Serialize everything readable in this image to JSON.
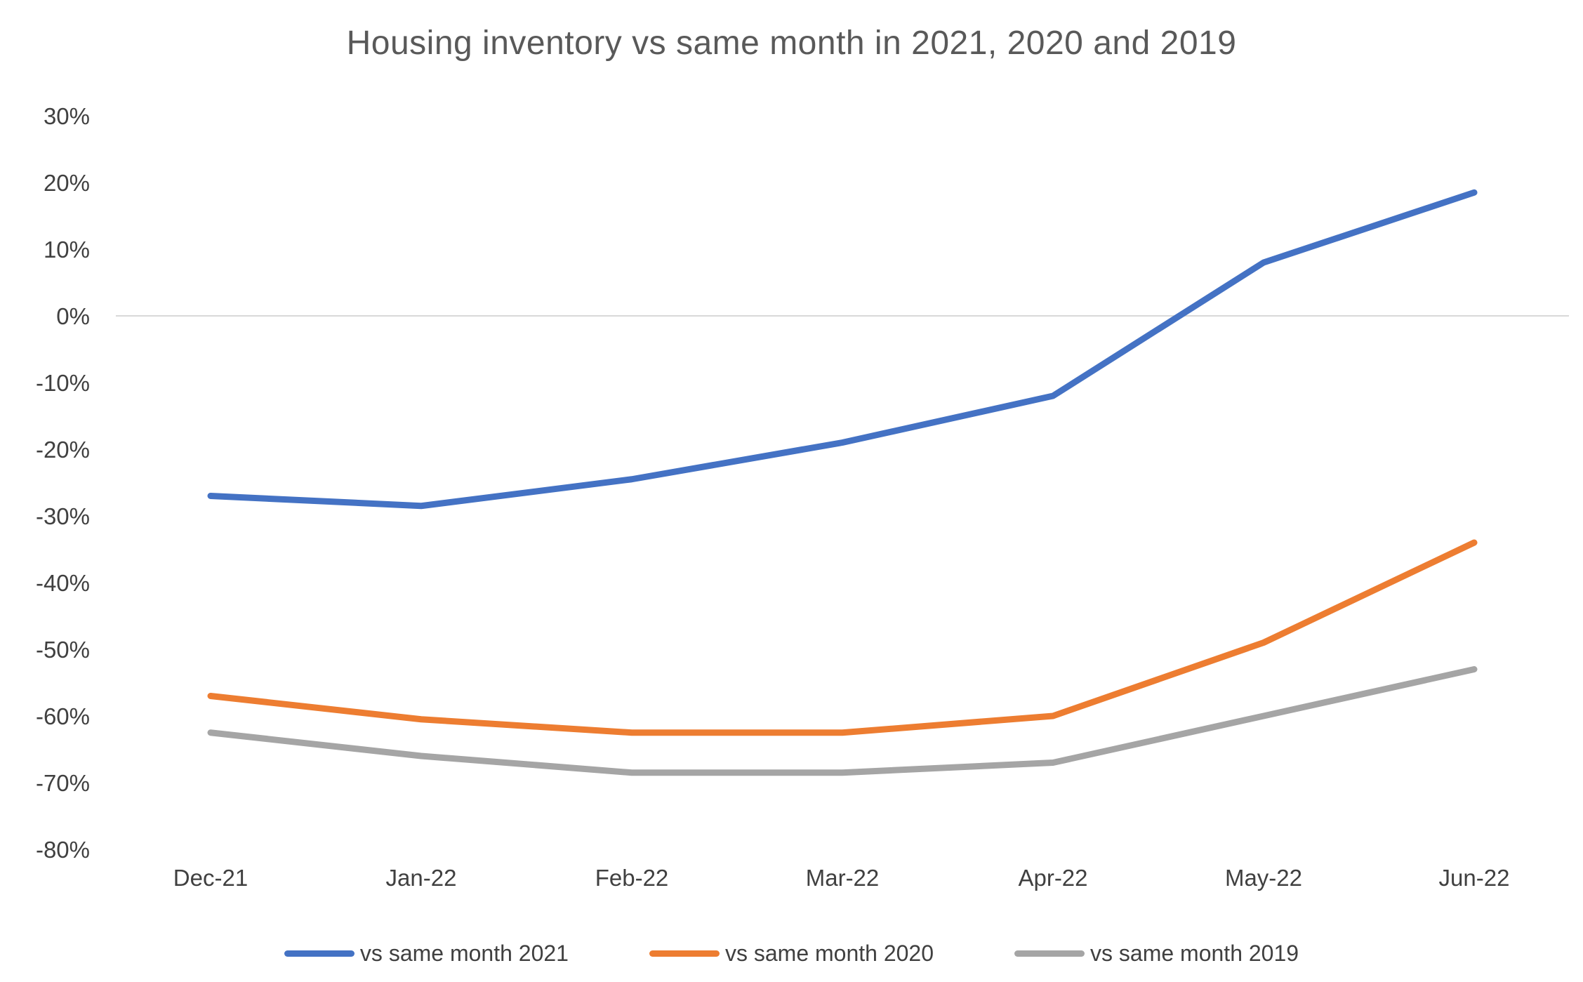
{
  "chart_data": {
    "type": "line",
    "title": "Housing inventory vs same month in 2021, 2020 and 2019",
    "categories": [
      "Dec-21",
      "Jan-22",
      "Feb-22",
      "Mar-22",
      "Apr-22",
      "May-22",
      "Jun-22"
    ],
    "series": [
      {
        "name": "vs same month 2021",
        "color": "#4472C4",
        "values": [
          -27,
          -28.5,
          -24.5,
          -19,
          -12,
          8,
          18.5
        ]
      },
      {
        "name": "vs same month 2020",
        "color": "#ED7D31",
        "values": [
          -57,
          -60.5,
          -62.5,
          -62.5,
          -60,
          -49,
          -34
        ]
      },
      {
        "name": "vs same month 2019",
        "color": "#A5A5A5",
        "values": [
          -62.5,
          -66,
          -68.5,
          -68.5,
          -67,
          -60,
          -53
        ]
      }
    ],
    "xlabel": "",
    "ylabel": "",
    "ylim": [
      -80,
      30
    ],
    "y_ticks": [
      "30%",
      "20%",
      "10%",
      "0%",
      "-10%",
      "-20%",
      "-30%",
      "-40%",
      "-50%",
      "-60%",
      "-70%",
      "-80%"
    ],
    "y_tick_values": [
      30,
      20,
      10,
      0,
      -10,
      -20,
      -30,
      -40,
      -50,
      -60,
      -70,
      -80
    ],
    "grid": "zero-line-only",
    "legend_position": "bottom"
  },
  "colors": {
    "background": "#ffffff",
    "title_text": "#595959",
    "axis_text": "#404040",
    "zero_line": "#d9d9d9",
    "series_blue": "#4472C4",
    "series_orange": "#ED7D31",
    "series_gray": "#A5A5A5"
  }
}
